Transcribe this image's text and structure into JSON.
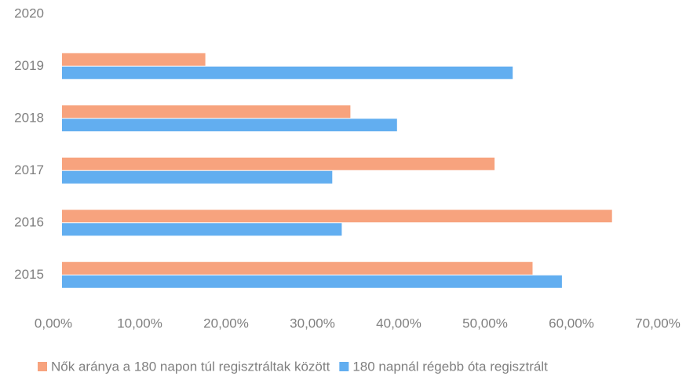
{
  "chart_data": {
    "type": "hbar",
    "categories": [
      "2015",
      "2016",
      "2017",
      "2018",
      "2019",
      "2020"
    ],
    "series": [
      {
        "name": "Nők aránya a 180 napon túl regisztráltak között",
        "color": "#f7a37e",
        "values": [
          54.5,
          63.7,
          50.1,
          33.4,
          16.6,
          null
        ]
      },
      {
        "name": "180 napnál régebb óta regisztrált",
        "color": "#62aef0",
        "values": [
          57.9,
          32.4,
          31.3,
          38.8,
          52.2,
          null
        ]
      }
    ],
    "xlim": [
      0,
      70
    ],
    "xticks": [
      {
        "value": 0,
        "label": "0,00%"
      },
      {
        "value": 10,
        "label": "10,00%"
      },
      {
        "value": 20,
        "label": "20,00%"
      },
      {
        "value": 30,
        "label": "30,00%"
      },
      {
        "value": 40,
        "label": "40,00%"
      },
      {
        "value": 50,
        "label": "50,00%"
      },
      {
        "value": 60,
        "label": "60,00%"
      },
      {
        "value": 70,
        "label": "70,00%"
      }
    ],
    "legend": "bottom"
  }
}
